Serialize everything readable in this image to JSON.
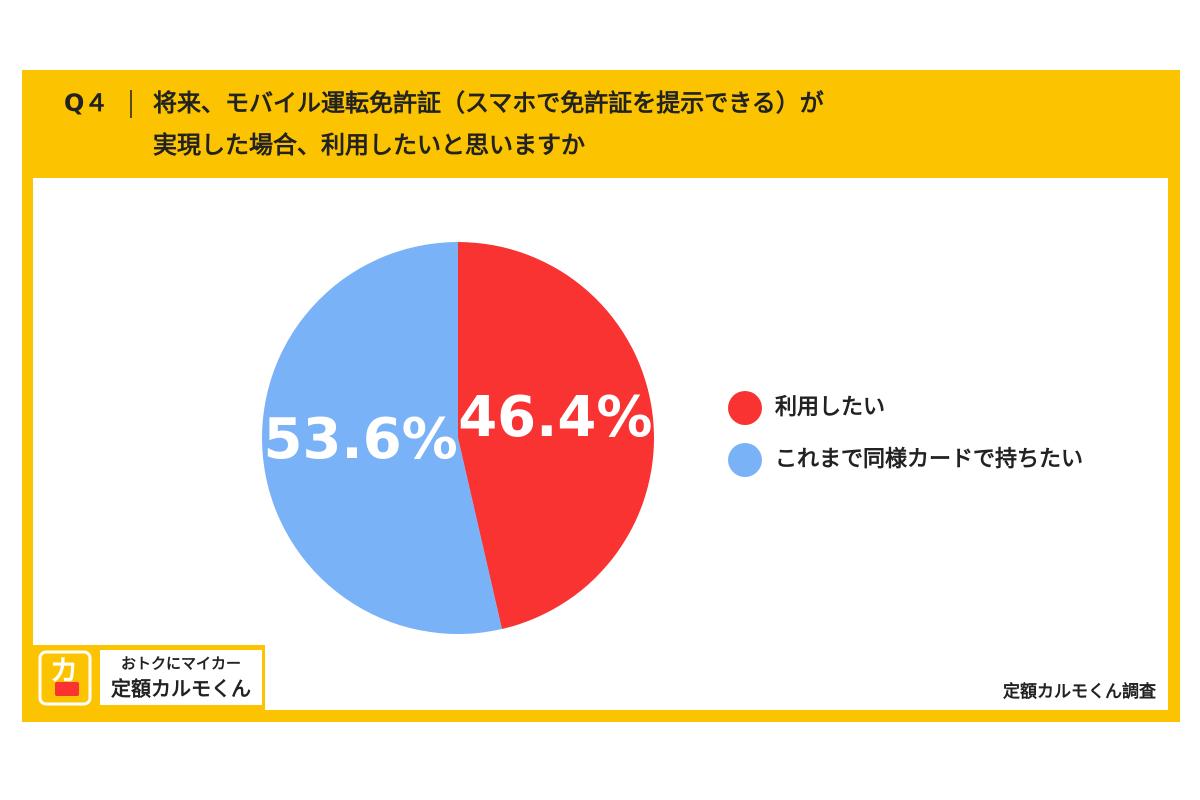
{
  "chart_data": {
    "type": "pie",
    "question_number": "Q４",
    "title": [
      "将来、モバイル運転免許証（スマホで免許証を提示できる）が",
      "実現した場合、利用したいと思いますか"
    ],
    "categories": [
      "利用したい",
      "これまで同様カードで持ちたい"
    ],
    "values": [
      46.4,
      53.6
    ],
    "value_labels": [
      "46.4%",
      "53.6%"
    ],
    "colors": [
      "#f93232",
      "#7ab2f7"
    ],
    "source": "定額カルモくん調査",
    "logo": {
      "tagline": "おトクにマイカー",
      "name": "定額カルモくん"
    }
  }
}
